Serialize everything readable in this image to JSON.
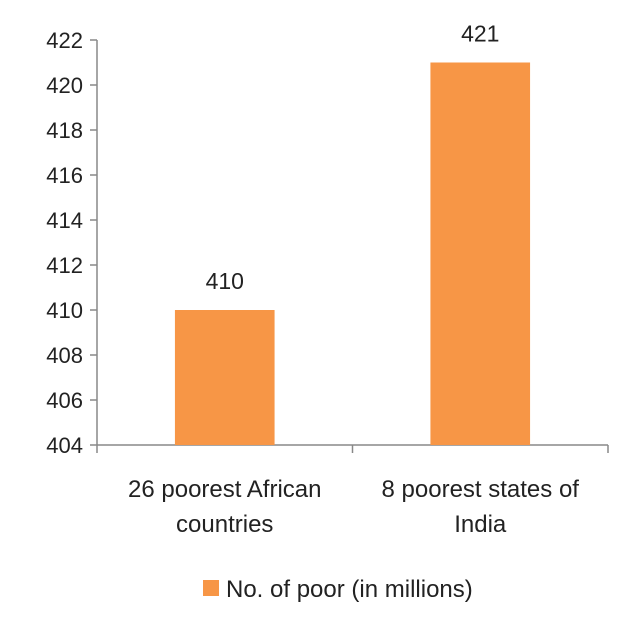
{
  "chart_data": {
    "type": "bar",
    "categories": [
      [
        "26 poorest African",
        "countries"
      ],
      [
        "8 poorest states of",
        "India"
      ]
    ],
    "series": [
      {
        "name": "No. of poor (in millions)",
        "values": [
          410,
          421
        ],
        "color": "#F79646"
      }
    ],
    "ylim": [
      404,
      422
    ],
    "yticks": [
      404,
      406,
      408,
      410,
      412,
      414,
      416,
      418,
      420,
      422
    ],
    "grid": false,
    "legend": "bottom"
  }
}
